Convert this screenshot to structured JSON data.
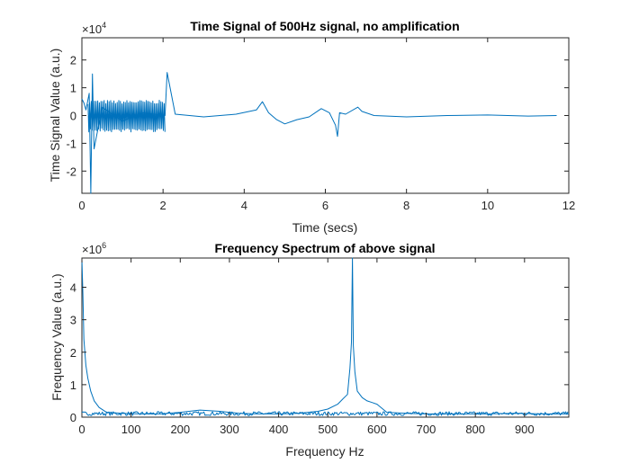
{
  "chart_data": [
    {
      "type": "line",
      "title": "Time Signal of 500Hz signal, no amplification",
      "xlabel": "Time (secs)",
      "ylabel": "Time Signal Value (a.u.)",
      "exponent": {
        "base": "×10",
        "power": "4"
      },
      "xlim": [
        0,
        12
      ],
      "ylim": [
        -2.8,
        2.8
      ],
      "xticks": [
        0,
        2,
        4,
        6,
        8,
        10,
        12
      ],
      "yticks": [
        -2,
        -1,
        0,
        1,
        2
      ],
      "ytick_labels": [
        "-2",
        "-1",
        "0",
        "1",
        "2"
      ],
      "grid": false,
      "color": "#0072bd",
      "series": [
        {
          "x": [
            0,
            0.05,
            0.1,
            0.18,
            0.22,
            0.26,
            0.3,
            0.5,
            1.0,
            1.5,
            2.05,
            2.1,
            2.3,
            3.0,
            3.8,
            4.3,
            4.45,
            4.6,
            4.8,
            5.0,
            5.3,
            5.6,
            5.9,
            6.1,
            6.25,
            6.3,
            6.35,
            6.5,
            6.8,
            6.9,
            7.2,
            8.0,
            9.0,
            10.0,
            11.0,
            11.7
          ],
          "y": [
            0.6,
            0.45,
            0.2,
            0.8,
            -2.8,
            1.5,
            -1.2,
            0.3,
            -0.2,
            0.1,
            0.0,
            1.55,
            0.05,
            -0.05,
            0.05,
            0.2,
            0.5,
            0.1,
            -0.15,
            -0.3,
            -0.15,
            -0.05,
            0.25,
            0.1,
            -0.35,
            -0.75,
            0.1,
            0.05,
            0.3,
            0.15,
            0.0,
            -0.05,
            0.0,
            0.02,
            -0.02,
            0.0
          ]
        }
      ],
      "envelopes": [
        {
          "x": [
            0.15,
            2.05
          ],
          "low": -0.6,
          "high": 0.55
        }
      ]
    },
    {
      "type": "line",
      "title": "Frequency Spectrum of above signal",
      "xlabel": "Frequency Hz",
      "ylabel": "Frequency Value (a.u.)",
      "exponent": {
        "base": "×10",
        "power": "6"
      },
      "xlim": [
        0,
        990
      ],
      "ylim": [
        0,
        4.9
      ],
      "xticks": [
        0,
        100,
        200,
        300,
        400,
        500,
        600,
        700,
        800,
        900
      ],
      "yticks": [
        0,
        1,
        2,
        3,
        4
      ],
      "ytick_labels": [
        "0",
        "1",
        "2",
        "3",
        "4"
      ],
      "grid": false,
      "color": "#0072bd",
      "series": [
        {
          "x": [
            0,
            2,
            4,
            8,
            12,
            18,
            25,
            35,
            50,
            80,
            120,
            160,
            200,
            240,
            280,
            320,
            360,
            400,
            440,
            480,
            500,
            520,
            530,
            540,
            545,
            548,
            550,
            552,
            555,
            560,
            570,
            580,
            590,
            600,
            620,
            660,
            700,
            760,
            820,
            880,
            940,
            990
          ],
          "y": [
            4.85,
            3.8,
            2.4,
            1.6,
            1.2,
            0.8,
            0.5,
            0.3,
            0.15,
            0.12,
            0.1,
            0.1,
            0.15,
            0.22,
            0.18,
            0.12,
            0.1,
            0.1,
            0.12,
            0.18,
            0.25,
            0.4,
            0.55,
            0.7,
            1.5,
            2.3,
            4.9,
            2.2,
            1.4,
            0.8,
            0.6,
            0.5,
            0.45,
            0.4,
            0.15,
            0.12,
            0.1,
            0.1,
            0.1,
            0.12,
            0.1,
            0.1
          ]
        }
      ],
      "envelopes": []
    }
  ]
}
